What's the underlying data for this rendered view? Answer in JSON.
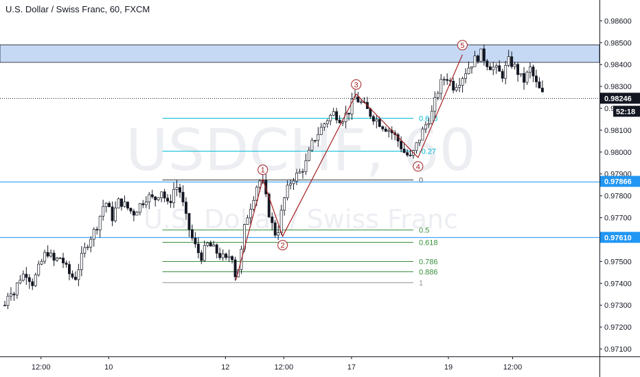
{
  "header": {
    "title": "U.S. Dollar / Swiss Franc, 60, FXCM"
  },
  "watermark": {
    "symbol": "USDCHF, 60",
    "description": "U.S. Dollar / Swiss Franc"
  },
  "colors": {
    "up": "#131722",
    "down": "#131722",
    "wave": "#a31f22",
    "fib_upper": "#00bcd4",
    "fib_lower": "#388e3c",
    "fib_zero": "#555555",
    "horizontal": "#42a5f5",
    "zone": "#c5d9f5",
    "badge_last": "#131722",
    "badge_line": "#2196f3"
  },
  "chart_data": {
    "type": "candlestick",
    "symbol": "USDCHF",
    "timeframe": "60",
    "ylim": [
      0.97075,
      0.98645
    ],
    "y_ticks": [
      "0.97100",
      "0.97200",
      "0.97300",
      "0.97400",
      "0.97500",
      "0.97600",
      "0.97700",
      "0.97800",
      "0.97900",
      "0.98000",
      "0.98100",
      "0.98200",
      "0.98300",
      "0.98400",
      "0.98500",
      "0.98600"
    ],
    "x_labels": [
      {
        "label": "12:00",
        "bar": 0.31
      },
      {
        "label": "10",
        "bar": 0.89
      },
      {
        "label": "12",
        "bar": 1.89
      },
      {
        "label": "12:00",
        "bar": 2.39
      },
      {
        "label": "17",
        "bar": 2.97
      },
      {
        "label": "19",
        "bar": 3.8
      },
      {
        "label": "12:00",
        "bar": 4.35
      }
    ],
    "price_path": [
      [
        0.0,
        0.973
      ],
      [
        0.04,
        0.9738
      ],
      [
        0.08,
        0.9735
      ],
      [
        0.12,
        0.9742
      ],
      [
        0.18,
        0.9745
      ],
      [
        0.24,
        0.974
      ],
      [
        0.3,
        0.9748
      ],
      [
        0.36,
        0.9755
      ],
      [
        0.42,
        0.975
      ],
      [
        0.48,
        0.9752
      ],
      [
        0.54,
        0.9745
      ],
      [
        0.6,
        0.9742
      ],
      [
        0.66,
        0.9752
      ],
      [
        0.72,
        0.976
      ],
      [
        0.78,
        0.9765
      ],
      [
        0.84,
        0.9775
      ],
      [
        0.86,
        0.9778
      ],
      [
        0.88,
        0.9775
      ],
      [
        0.92,
        0.977
      ],
      [
        0.98,
        0.9778
      ],
      [
        1.04,
        0.9775
      ],
      [
        1.1,
        0.9772
      ],
      [
        1.16,
        0.9776
      ],
      [
        1.22,
        0.978
      ],
      [
        1.28,
        0.9778
      ],
      [
        1.34,
        0.9783
      ],
      [
        1.4,
        0.9775
      ],
      [
        1.46,
        0.9785
      ],
      [
        1.5,
        0.9782
      ],
      [
        1.56,
        0.9768
      ],
      [
        1.62,
        0.9758
      ],
      [
        1.68,
        0.9752
      ],
      [
        1.74,
        0.9758
      ],
      [
        1.8,
        0.9755
      ],
      [
        1.86,
        0.9752
      ],
      [
        1.9,
        0.975
      ],
      [
        1.94,
        0.9755
      ],
      [
        1.98,
        0.9742
      ],
      [
        2.02,
        0.9752
      ],
      [
        2.06,
        0.9768
      ],
      [
        2.12,
        0.9778
      ],
      [
        2.16,
        0.9785
      ],
      [
        2.2,
        0.9788
      ],
      [
        2.24,
        0.9778
      ],
      [
        2.28,
        0.9768
      ],
      [
        2.33,
        0.9761
      ],
      [
        2.36,
        0.977
      ],
      [
        2.4,
        0.978
      ],
      [
        2.46,
        0.9788
      ],
      [
        2.52,
        0.979
      ],
      [
        2.58,
        0.9795
      ],
      [
        2.64,
        0.9805
      ],
      [
        2.7,
        0.981
      ],
      [
        2.76,
        0.9815
      ],
      [
        2.82,
        0.9818
      ],
      [
        2.88,
        0.9815
      ],
      [
        2.94,
        0.9818
      ],
      [
        3.0,
        0.9825
      ],
      [
        3.06,
        0.9822
      ],
      [
        3.12,
        0.9818
      ],
      [
        3.18,
        0.9815
      ],
      [
        3.24,
        0.9812
      ],
      [
        3.3,
        0.981
      ],
      [
        3.36,
        0.9806
      ],
      [
        3.42,
        0.98
      ],
      [
        3.48,
        0.9797
      ],
      [
        3.54,
        0.9805
      ],
      [
        3.6,
        0.9812
      ],
      [
        3.66,
        0.9818
      ],
      [
        3.72,
        0.983
      ],
      [
        3.78,
        0.9835
      ],
      [
        3.84,
        0.983
      ],
      [
        3.9,
        0.9833
      ],
      [
        3.96,
        0.9838
      ],
      [
        4.02,
        0.9842
      ],
      [
        4.08,
        0.9845
      ],
      [
        4.14,
        0.984
      ],
      [
        4.2,
        0.9838
      ],
      [
        4.26,
        0.9835
      ],
      [
        4.32,
        0.9842
      ],
      [
        4.38,
        0.9838
      ],
      [
        4.44,
        0.9832
      ],
      [
        4.5,
        0.9838
      ],
      [
        4.56,
        0.983
      ],
      [
        4.62,
        0.9825
      ]
    ],
    "last_price": {
      "value": 0.98246,
      "label": "0.98246",
      "countdown": "52:18"
    },
    "horizontal_lines": [
      {
        "value": 0.97866,
        "label": "0.97866"
      },
      {
        "value": 0.9761,
        "label": "0.97610"
      }
    ],
    "resistance_zone": {
      "y_top": 0.9849,
      "y_bottom": 0.9841
    },
    "fib_retracement": {
      "x_range": [
        1.35,
        3.5
      ],
      "levels": [
        {
          "value": 0.98155,
          "label": "0.618",
          "group": "upper"
        },
        {
          "value": 0.98005,
          "label": "-0.27",
          "group": "upper"
        },
        {
          "value": 0.97875,
          "label": "0",
          "group": "zero"
        },
        {
          "value": 0.97645,
          "label": "0.5",
          "group": "lower"
        },
        {
          "value": 0.9759,
          "label": "0.618",
          "group": "lower"
        },
        {
          "value": 0.975,
          "label": "0.786",
          "group": "lower"
        },
        {
          "value": 0.97455,
          "label": "0.886",
          "group": "lower"
        },
        {
          "value": 0.97405,
          "label": "1",
          "group": "gray"
        }
      ]
    },
    "wave_points": [
      {
        "x": 1.98,
        "y": 0.97415,
        "label": ""
      },
      {
        "x": 2.21,
        "y": 0.97875,
        "label": "1"
      },
      {
        "x": 2.38,
        "y": 0.97615,
        "label": "2"
      },
      {
        "x": 3.01,
        "y": 0.98265,
        "label": "3"
      },
      {
        "x": 3.54,
        "y": 0.97975,
        "label": "4"
      },
      {
        "x": 3.92,
        "y": 0.98445,
        "label": "5"
      }
    ]
  }
}
